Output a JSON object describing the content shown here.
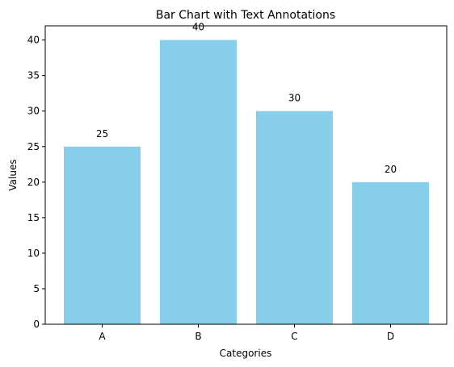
{
  "chart_data": {
    "type": "bar",
    "title": "Bar Chart with Text Annotations",
    "xlabel": "Categories",
    "ylabel": "Values",
    "categories": [
      "A",
      "B",
      "C",
      "D"
    ],
    "values": [
      25,
      40,
      30,
      20
    ],
    "data_labels": [
      "25",
      "40",
      "30",
      "20"
    ],
    "ylim": [
      0,
      42
    ],
    "yticks": [
      0,
      5,
      10,
      15,
      20,
      25,
      30,
      35,
      40
    ],
    "bar_color": "#87ceeb",
    "grid": false,
    "legend": "none"
  }
}
